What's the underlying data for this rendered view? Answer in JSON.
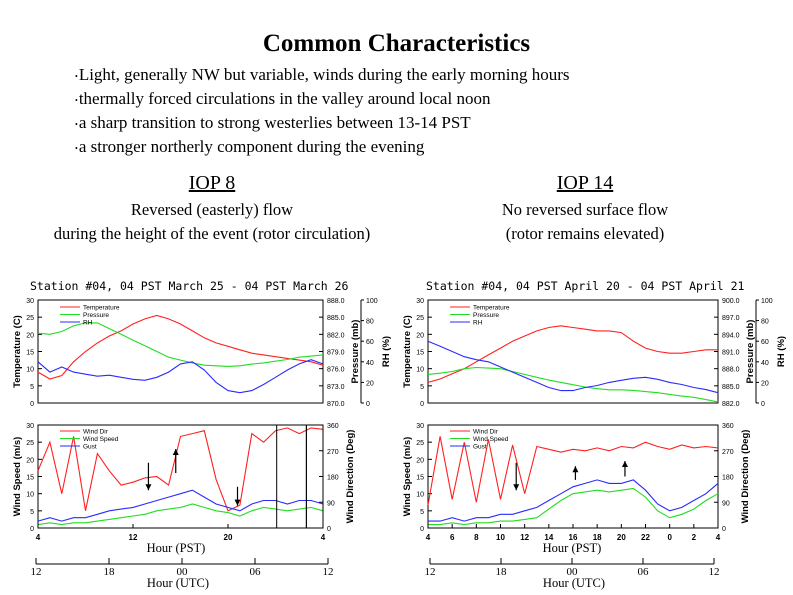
{
  "page": {
    "title": "Common Characteristics",
    "bullets": [
      "Light, generally NW but variable, winds during the early morning hours",
      "thermally forced circulations in the valley around local noon",
      "a sharp transition to strong westerlies between 13-14 PST",
      "a stronger northerly component during the evening"
    ],
    "left": {
      "header": "IOP 8",
      "desc1": "Reversed (easterly) flow",
      "desc2": "during the height of the event (rotor circulation)"
    },
    "right": {
      "header": "IOP 14",
      "desc1": "No reversed surface flow",
      "desc2": "(rotor remains elevated)"
    }
  },
  "colors": {
    "temperature": "#ff2020",
    "pressure": "#22dd22",
    "rh": "#2a2aff",
    "wind_dir": "#ff2020",
    "wind_speed": "#22dd22",
    "gust": "#2a2aff"
  },
  "chart_data": [
    {
      "type": "line",
      "title": "Station #04, 04 PST March 25 - 04 PST March 26",
      "top_panel": {
        "ylabel_left": "Temperature (C)",
        "ylim_left": [
          0,
          30
        ],
        "yticks_left": [
          "0",
          "5",
          "10",
          "15",
          "20",
          "25",
          "30"
        ],
        "ylabel_p": "Pressure (mb)",
        "ylim_p": [
          870,
          888
        ],
        "yticks_p": [
          "870.0",
          "873.0",
          "876.0",
          "879.0",
          "882.0",
          "885.0",
          "888.0"
        ],
        "ylabel_rh": "RH (%)",
        "ylim_rh": [
          0,
          100
        ],
        "yticks_rh": [
          "0",
          "20",
          "40",
          "60",
          "80",
          "100"
        ],
        "legend": [
          "Temperature",
          "Pressure",
          "RH"
        ],
        "x": [
          4,
          5,
          6,
          7,
          8,
          9,
          10,
          11,
          12,
          13,
          14,
          15,
          16,
          17,
          18,
          19,
          20,
          21,
          22,
          23,
          24,
          25,
          26,
          27,
          28
        ],
        "series": [
          {
            "name": "Temperature",
            "axis": "left",
            "values": [
              9,
              7,
              8,
              12,
              15,
              17.5,
              19.5,
              21,
              23,
              24.5,
              25.5,
              24.5,
              23,
              21,
              19,
              17.5,
              16.5,
              15.5,
              14.5,
              14,
              13.5,
              13,
              12.5,
              12,
              11
            ]
          },
          {
            "name": "Pressure",
            "axis": "p",
            "values": [
              882.2,
              882,
              882.5,
              883.5,
              884,
              884,
              883,
              882,
              881,
              880,
              879,
              878,
              877.5,
              877,
              876.6,
              876.5,
              876.4,
              876.5,
              876.8,
              877,
              877.3,
              877.6,
              878,
              878.2,
              878.4
            ]
          },
          {
            "name": "RH",
            "axis": "rh",
            "values": [
              40,
              30,
              35,
              30,
              28,
              26,
              27,
              25,
              23,
              22,
              25,
              30,
              38,
              40,
              32,
              20,
              12,
              10,
              12,
              18,
              25,
              32,
              38,
              42,
              38
            ]
          }
        ]
      },
      "bottom_panel": {
        "ylabel_left": "Wind Speed (m/s)",
        "ylim_left": [
          0,
          30
        ],
        "yticks_left": [
          "0",
          "5",
          "10",
          "15",
          "20",
          "25",
          "30"
        ],
        "ylabel_right": "Wind Direction (Deg)",
        "ylim_right": [
          0,
          360
        ],
        "yticks_right": [
          "0",
          "90",
          "180",
          "270",
          "360"
        ],
        "legend": [
          "Wind Dir",
          "Wind Speed",
          "Gust"
        ],
        "x": [
          4,
          5,
          6,
          7,
          8,
          9,
          10,
          11,
          12,
          13,
          14,
          15,
          16,
          17,
          18,
          19,
          20,
          21,
          22,
          23,
          24,
          25,
          26,
          27,
          28
        ],
        "series": [
          {
            "name": "Wind Dir",
            "axis": "right",
            "values": [
              200,
              300,
              120,
              320,
              60,
              260,
              200,
              150,
              160,
              175,
              180,
              150,
              320,
              330,
              340,
              170,
              60,
              80,
              330,
              300,
              340,
              350,
              330,
              350,
              345
            ]
          },
          {
            "name": "Wind Speed",
            "axis": "left",
            "values": [
              1,
              1.5,
              1,
              1.5,
              1.5,
              2,
              2.5,
              3,
              3.5,
              4,
              5,
              5.5,
              6,
              7,
              6,
              5,
              4.5,
              3.5,
              5,
              6,
              5.5,
              5,
              5.5,
              6,
              5
            ]
          },
          {
            "name": "Gust",
            "axis": "left",
            "values": [
              2,
              3,
              2,
              3,
              3,
              4,
              5,
              5.5,
              6,
              7,
              8,
              9,
              10,
              11,
              9,
              7,
              6,
              5,
              7,
              8,
              8,
              7,
              8,
              8,
              7
            ]
          }
        ]
      },
      "x_ticks_pst": [
        "4",
        "12",
        "20",
        "4"
      ],
      "xlabel_pst": "Hour (PST)",
      "x_ticks_utc": [
        "12",
        "18",
        "00",
        "06",
        "12"
      ],
      "xlabel_utc": "Hour (UTC)"
    },
    {
      "type": "line",
      "title": "Station #04, 04 PST April 20 - 04 PST April 21",
      "top_panel": {
        "ylabel_left": "Temperature (C)",
        "ylim_left": [
          0,
          30
        ],
        "yticks_left": [
          "0",
          "5",
          "10",
          "15",
          "20",
          "25",
          "30"
        ],
        "ylabel_p": "Pressure (mb)",
        "ylim_p": [
          882,
          900
        ],
        "yticks_p": [
          "882.0",
          "885.0",
          "888.0",
          "891.0",
          "894.0",
          "897.0",
          "900.0"
        ],
        "ylabel_rh": "RH (%)",
        "ylim_rh": [
          0,
          100
        ],
        "yticks_rh": [
          "0",
          "20",
          "40",
          "60",
          "80",
          "100"
        ],
        "legend": [
          "Temperature",
          "Pressure",
          "RH"
        ],
        "x": [
          4,
          5,
          6,
          7,
          8,
          9,
          10,
          11,
          12,
          13,
          14,
          15,
          16,
          17,
          18,
          19,
          20,
          21,
          22,
          23,
          24,
          25,
          26,
          27,
          28
        ],
        "series": [
          {
            "name": "Temperature",
            "axis": "left",
            "values": [
              6,
              7,
              8.5,
              10,
              12,
              14,
              16,
              18,
              19.5,
              21,
              22,
              22.5,
              22,
              21.5,
              21,
              21,
              20.5,
              18,
              16,
              15,
              14.5,
              14.5,
              15,
              15.5,
              15.5
            ]
          },
          {
            "name": "Pressure",
            "axis": "p",
            "values": [
              887,
              887.2,
              887.5,
              888,
              888.2,
              888.1,
              888,
              887.5,
              887,
              886.5,
              886,
              885.6,
              885.2,
              884.8,
              884.5,
              884.3,
              884.3,
              884.2,
              884,
              883.8,
              883.5,
              883.2,
              883,
              882.6,
              882.2
            ]
          },
          {
            "name": "RH",
            "axis": "rh",
            "values": [
              60,
              55,
              50,
              45,
              42,
              40,
              35,
              30,
              25,
              20,
              15,
              12,
              12,
              15,
              17,
              20,
              22,
              24,
              25,
              23,
              20,
              18,
              15,
              13,
              10
            ]
          }
        ]
      },
      "bottom_panel": {
        "ylabel_left": "Wind Speed (m/s)",
        "ylim_left": [
          0,
          30
        ],
        "yticks_left": [
          "0",
          "5",
          "10",
          "15",
          "20",
          "25",
          "30"
        ],
        "ylabel_right": "Wind Direction (Deg)",
        "ylim_right": [
          0,
          360
        ],
        "yticks_right": [
          "0",
          "90",
          "180",
          "270",
          "360"
        ],
        "legend": [
          "Wind Dir",
          "Wind Speed",
          "Gust"
        ],
        "x": [
          4,
          5,
          6,
          7,
          8,
          9,
          10,
          11,
          12,
          13,
          14,
          15,
          16,
          17,
          18,
          19,
          20,
          21,
          22,
          23,
          24,
          25,
          26,
          27,
          28
        ],
        "series": [
          {
            "name": "Wind Dir",
            "axis": "right",
            "values": [
              80,
              320,
              100,
              300,
              90,
              310,
              100,
              290,
              120,
              285,
              275,
              265,
              275,
              270,
              280,
              270,
              285,
              280,
              300,
              285,
              275,
              290,
              280,
              285,
              280
            ]
          },
          {
            "name": "Wind Speed",
            "axis": "left",
            "values": [
              1,
              1,
              1.5,
              1,
              1.5,
              1.5,
              2,
              2,
              2.5,
              3,
              5.5,
              8,
              10,
              10.5,
              11,
              10.5,
              11,
              11.5,
              9,
              5,
              3,
              4,
              5.5,
              8,
              10
            ]
          },
          {
            "name": "Gust",
            "axis": "left",
            "values": [
              2,
              2,
              3,
              2,
              3,
              3,
              4,
              4,
              5,
              6,
              8,
              10,
              12,
              13,
              14,
              13,
              13,
              14,
              11,
              7,
              5,
              6,
              8,
              10,
              13
            ]
          }
        ]
      },
      "x_ticks_pst": [
        "4",
        "6",
        "8",
        "10",
        "12",
        "14",
        "16",
        "18",
        "20",
        "22",
        "0",
        "2",
        "4"
      ],
      "xlabel_pst": "Hour (PST)",
      "x_ticks_utc": [
        "12",
        "18",
        "00",
        "06",
        "12"
      ],
      "xlabel_utc": "Hour (UTC)"
    }
  ]
}
